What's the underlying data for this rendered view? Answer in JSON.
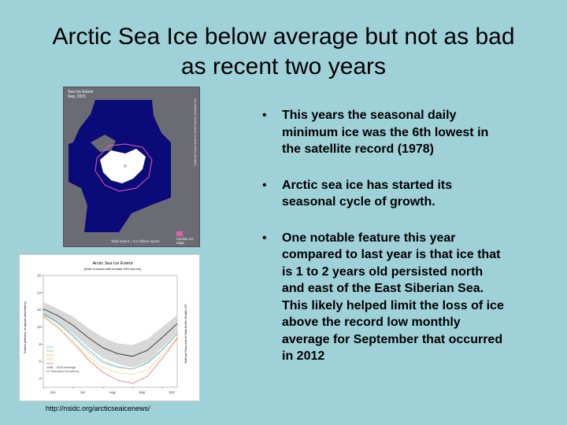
{
  "slide": {
    "title_line1": "Arctic Sea Ice below average but not as bad",
    "title_line2": "as recent two years",
    "bullets": [
      "This years the seasonal daily minimum ice was the 6th lowest in the satellite record (1978)",
      "Arctic sea ice has started its seasonal cycle of growth.",
      "One notable feature this year compared to last year is that ice that is 1 to 2 years old persisted north and east of the East Siberian Sea. This likely helped limit the loss of ice above the record low monthly average for September that occurred in 2012"
    ],
    "source_url": "http://nsidc.org/arcticseaicenews/",
    "colors": {
      "background": "#9fd1d9",
      "ocean": "#0a0a78",
      "ice": "#ffffff",
      "land": "#6b6b73",
      "median_edge": "#e060b0"
    }
  },
  "map": {
    "header": "Sea Ice Extent\nSep, 2015",
    "side_text": "National Snow and Ice Data Center, Boulder CO",
    "footer": "Total extent = 5.2 million sq km",
    "legend": "median ice edge"
  },
  "chart_data": {
    "type": "line",
    "title": "Arctic Sea Ice Extent",
    "subtitle": "(Area of ocean with at least 15% sea ice)",
    "ylabel": "Extent (millions of square kilometers)",
    "x_ticks": [
      "Jun",
      "Jul",
      "Aug",
      "Sep",
      "Oct"
    ],
    "y_ticks": [
      "4",
      "6",
      "8",
      "10",
      "12",
      "14",
      "16"
    ],
    "ylim": [
      3,
      16
    ],
    "x": [
      0,
      0.5,
      1,
      1.5,
      2,
      2.5,
      3,
      3.5,
      4,
      4.5
    ],
    "series": [
      {
        "name": "2014",
        "color": "#5aa0d8",
        "values": [
          11.6,
          10.5,
          9.0,
          7.4,
          6.0,
          5.4,
          5.1,
          5.8,
          7.3,
          9.2
        ]
      },
      {
        "name": "2013",
        "color": "#6fbf73",
        "values": [
          11.5,
          10.4,
          8.9,
          7.1,
          5.8,
          5.3,
          5.1,
          5.9,
          7.4,
          9.3
        ]
      },
      {
        "name": "2012",
        "color": "#e8a040",
        "values": [
          11.3,
          10.0,
          8.3,
          6.3,
          4.8,
          3.8,
          3.4,
          4.2,
          6.3,
          8.6
        ]
      },
      {
        "name": "2011",
        "color": "#e0c040",
        "values": [
          11.3,
          10.0,
          8.3,
          6.6,
          5.3,
          4.7,
          4.5,
          5.0,
          6.8,
          8.8
        ]
      },
      {
        "name": "2012",
        "color": "#d060a0",
        "values": [
          11.2,
          9.9,
          8.1,
          6.2,
          4.7,
          3.8,
          3.5,
          4.3,
          6.4,
          8.7
        ]
      },
      {
        "name": "1981 - 2010 Average",
        "color": "#404040",
        "values": [
          12.1,
          11.3,
          10.2,
          8.8,
          7.6,
          6.9,
          6.6,
          7.3,
          8.8,
          10.4
        ]
      }
    ],
    "band": {
      "label": "±2 Standard Deviations",
      "upper": [
        12.9,
        12.1,
        11.2,
        9.9,
        8.8,
        8.1,
        7.9,
        8.6,
        10.0,
        11.4
      ],
      "lower": [
        11.3,
        10.5,
        9.2,
        7.7,
        6.4,
        5.7,
        5.3,
        6.0,
        7.6,
        9.4
      ]
    },
    "side_label": "National Snow and Ice Data Center, Boulder CO"
  }
}
